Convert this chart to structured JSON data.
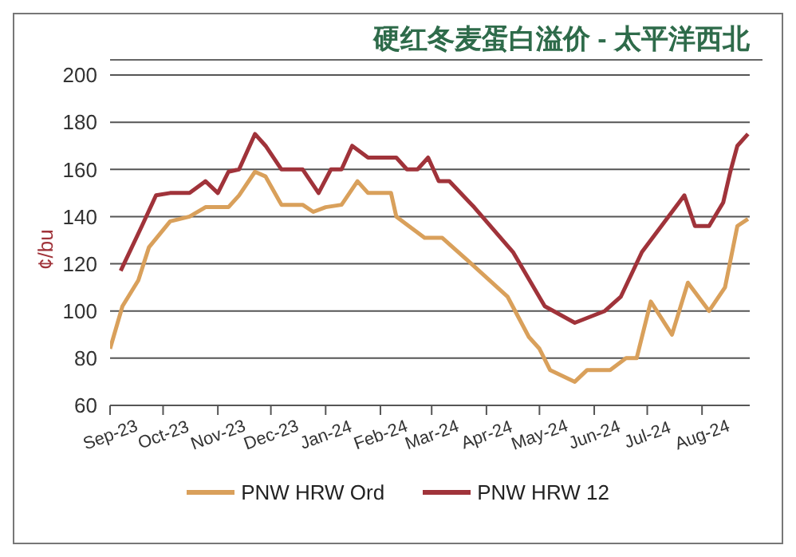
{
  "chart_data": {
    "type": "line",
    "title": "硬红冬麦蛋白溢价 - 太平洋西北",
    "ylabel": "¢/bu",
    "xlim": [
      "2023-09-01",
      "2024-08-28"
    ],
    "xticks": [
      {
        "value": "2023-09",
        "label": "Sep-23"
      },
      {
        "value": "2023-10",
        "label": "Oct-23"
      },
      {
        "value": "2023-11",
        "label": "Nov-23"
      },
      {
        "value": "2023-12",
        "label": "Dec-23"
      },
      {
        "value": "2024-01",
        "label": "Jan-24"
      },
      {
        "value": "2024-02",
        "label": "Feb-24"
      },
      {
        "value": "2024-03",
        "label": "Mar-24"
      },
      {
        "value": "2024-04",
        "label": "Apr-24"
      },
      {
        "value": "2024-05",
        "label": "May-24"
      },
      {
        "value": "2024-06",
        "label": "Jun-24"
      },
      {
        "value": "2024-07",
        "label": "Jul-24"
      },
      {
        "value": "2024-08",
        "label": "Aug-24"
      }
    ],
    "ylim": [
      60,
      200
    ],
    "yticks": [
      60,
      80,
      100,
      120,
      140,
      160,
      180,
      200
    ],
    "grid": "y",
    "legend": "bottom",
    "marker": "none",
    "line_style": "solid",
    "series": [
      {
        "name": "PNW HRW Ord",
        "color": "#d9a05b",
        "x": [
          "2023-09-01",
          "2023-09-08",
          "2023-09-17",
          "2023-09-23",
          "2023-10-05",
          "2023-10-16",
          "2023-10-25",
          "2023-11-07",
          "2023-11-13",
          "2023-11-22",
          "2023-11-28",
          "2023-12-07",
          "2023-12-19",
          "2023-12-25",
          "2024-01-01",
          "2024-01-10",
          "2024-01-19",
          "2024-01-25",
          "2024-02-07",
          "2024-02-10",
          "2024-02-26",
          "2024-03-07",
          "2024-03-22",
          "2024-04-13",
          "2024-04-25",
          "2024-05-01",
          "2024-05-07",
          "2024-05-21",
          "2024-05-28",
          "2024-06-10",
          "2024-06-19",
          "2024-06-25",
          "2024-07-03",
          "2024-07-15",
          "2024-07-24",
          "2024-08-05",
          "2024-08-14",
          "2024-08-21",
          "2024-08-27"
        ],
        "values": [
          84,
          102,
          113,
          127,
          138,
          140,
          144,
          144,
          149,
          159,
          157,
          145,
          145,
          142,
          144,
          145,
          155,
          150,
          150,
          140,
          131,
          131,
          121,
          106,
          89,
          84,
          75,
          70,
          75,
          75,
          80,
          80,
          104,
          90,
          112,
          100,
          110,
          136,
          139
        ]
      },
      {
        "name": "PNW HRW 12",
        "color": "#a0333a",
        "x": [
          "2023-09-07",
          "2023-09-19",
          "2023-09-27",
          "2023-10-05",
          "2023-10-16",
          "2023-10-25",
          "2023-11-01",
          "2023-11-07",
          "2023-11-13",
          "2023-11-22",
          "2023-11-28",
          "2023-12-07",
          "2023-12-19",
          "2023-12-28",
          "2024-01-04",
          "2024-01-10",
          "2024-01-16",
          "2024-01-25",
          "2024-02-10",
          "2024-02-16",
          "2024-02-22",
          "2024-02-28",
          "2024-03-05",
          "2024-03-11",
          "2024-03-25",
          "2024-04-16",
          "2024-05-04",
          "2024-05-21",
          "2024-06-07",
          "2024-06-16",
          "2024-06-28",
          "2024-07-19",
          "2024-07-22",
          "2024-07-28",
          "2024-08-05",
          "2024-08-13",
          "2024-08-17",
          "2024-08-21",
          "2024-08-27"
        ],
        "values": [
          117,
          136,
          149,
          150,
          150,
          155,
          150,
          159,
          160,
          175,
          170,
          160,
          160,
          150,
          160,
          160,
          170,
          165,
          165,
          160,
          160,
          165,
          155,
          155,
          144,
          125,
          102,
          95,
          100,
          106,
          125,
          146,
          149,
          136,
          136,
          146,
          159,
          170,
          175
        ]
      }
    ]
  }
}
